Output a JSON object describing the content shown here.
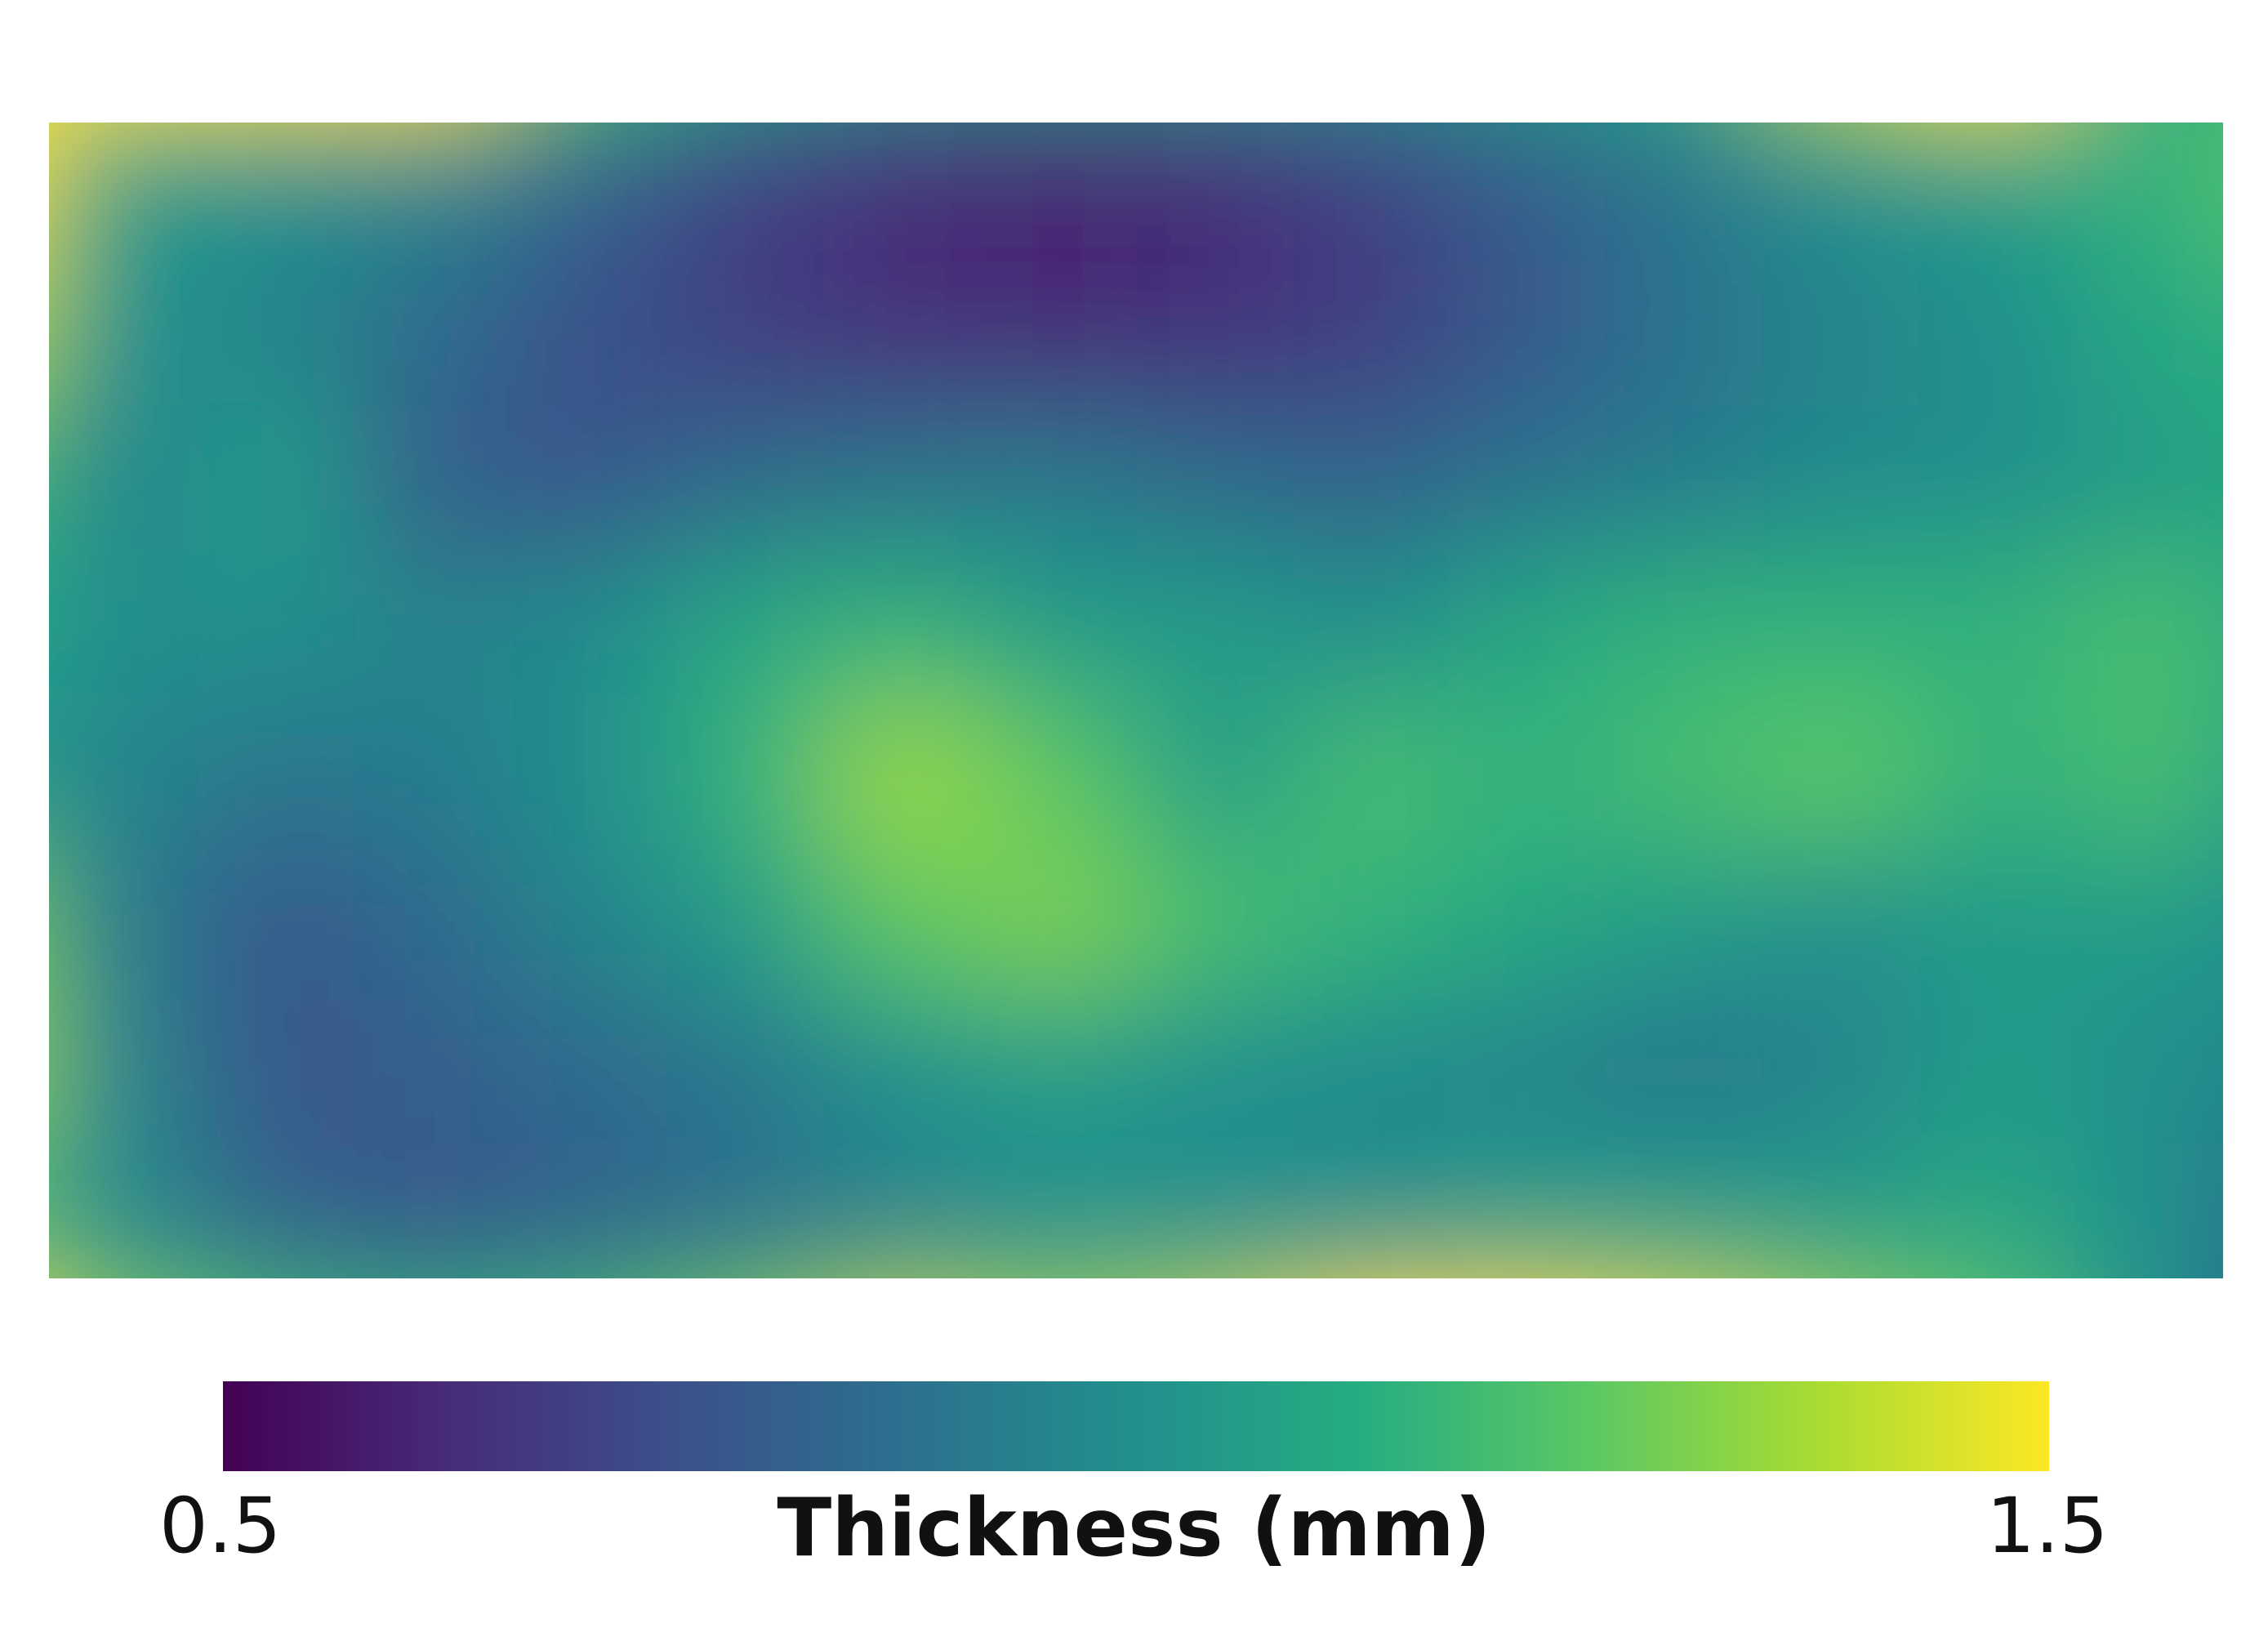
{
  "chart_data": {
    "type": "heatmap",
    "title": "",
    "colormap": "viridis",
    "colorbar": {
      "label": "Thickness (mm)",
      "min": 0.5,
      "max": 1.5,
      "min_label": "0.5",
      "max_label": "1.5",
      "orientation": "horizontal",
      "position": "bottom"
    },
    "axes_visible": false,
    "grid": false,
    "value_grid_note_rows_top_to_bottom": "approximate thickness field, 10 rows x 16 columns",
    "values": [
      [
        1.5,
        1.5,
        1.5,
        1.5,
        1.2,
        1.05,
        1.0,
        1.0,
        1.0,
        1.0,
        1.05,
        1.1,
        1.4,
        1.5,
        1.1,
        1.2
      ],
      [
        1.5,
        1.05,
        1.0,
        0.95,
        0.82,
        0.7,
        0.62,
        0.6,
        0.62,
        0.7,
        0.8,
        0.9,
        1.0,
        1.05,
        1.15,
        1.25
      ],
      [
        1.4,
        1.0,
        0.95,
        0.85,
        0.75,
        0.68,
        0.64,
        0.62,
        0.65,
        0.68,
        0.78,
        0.88,
        0.95,
        1.0,
        1.1,
        1.15
      ],
      [
        1.2,
        0.95,
        1.05,
        0.8,
        0.78,
        0.85,
        0.88,
        0.9,
        0.85,
        0.82,
        0.88,
        0.92,
        0.98,
        1.0,
        1.05,
        1.1
      ],
      [
        1.1,
        1.0,
        1.0,
        0.95,
        0.98,
        1.1,
        1.15,
        1.05,
        1.05,
        1.0,
        1.1,
        1.15,
        1.15,
        1.15,
        1.2,
        1.1
      ],
      [
        1.05,
        0.95,
        0.9,
        0.92,
        1.0,
        1.15,
        1.35,
        1.25,
        1.05,
        1.2,
        1.15,
        1.2,
        1.25,
        1.15,
        1.2,
        1.05
      ],
      [
        1.3,
        0.92,
        0.78,
        0.85,
        0.95,
        1.05,
        1.25,
        1.3,
        1.2,
        1.15,
        1.1,
        1.05,
        1.0,
        1.05,
        1.05,
        1.0
      ],
      [
        1.35,
        0.95,
        0.78,
        0.8,
        0.85,
        0.9,
        1.0,
        1.05,
        1.0,
        0.98,
        0.95,
        0.9,
        0.95,
        1.05,
        1.0,
        0.95
      ],
      [
        1.2,
        0.98,
        0.82,
        0.78,
        0.82,
        0.88,
        0.95,
        1.0,
        1.0,
        1.0,
        1.05,
        1.05,
        1.05,
        1.1,
        1.0,
        0.85
      ],
      [
        1.5,
        1.3,
        1.2,
        1.15,
        1.2,
        1.3,
        1.4,
        1.35,
        1.4,
        1.5,
        1.5,
        1.45,
        1.35,
        1.25,
        1.0,
        0.8
      ]
    ]
  }
}
